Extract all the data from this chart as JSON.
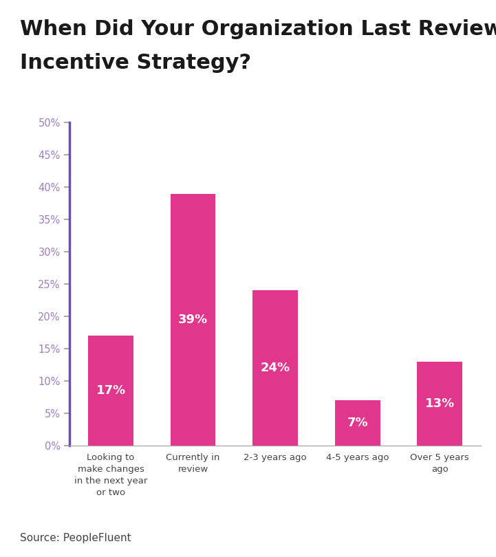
{
  "title_line1": "When Did Your Organization Last Review/Update Its",
  "title_line2": "Incentive Strategy?",
  "categories": [
    "Looking to\nmake changes\nin the next year\nor two",
    "Currently in\nreview",
    "2-3 years ago",
    "4-5 years ago",
    "Over 5 years\nago"
  ],
  "values": [
    17,
    39,
    24,
    7,
    13
  ],
  "bar_color": "#E0368C",
  "label_color": "#ffffff",
  "title_color": "#1a1a1a",
  "axis_color": "#6B4FA0",
  "tick_label_color": "#9B7FC0",
  "ytick_labels": [
    "0%",
    "5%",
    "10%",
    "15%",
    "20%",
    "25%",
    "30%",
    "35%",
    "40%",
    "45%",
    "50%"
  ],
  "ytick_values": [
    0,
    5,
    10,
    15,
    20,
    25,
    30,
    35,
    40,
    45,
    50
  ],
  "ylim": [
    0,
    50
  ],
  "source_text": "Source: PeopleFluent",
  "bar_label_fontsize": 13,
  "title_fontsize": 22,
  "source_fontsize": 11,
  "background_color": "#ffffff"
}
